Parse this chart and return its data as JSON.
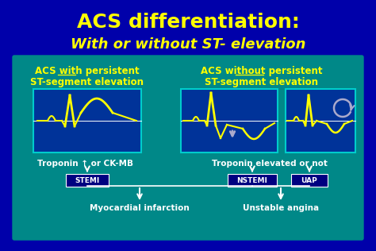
{
  "bg_color": "#0000aa",
  "panel_color": "#008888",
  "ecg_box_color": "#003399",
  "title_line1": "ACS differentiation:",
  "title_line2": "With or without ST- elevation",
  "title_color": "#ffff00",
  "subtitle_color": "#ffff00",
  "label_color": "#ffff00",
  "white_color": "#ffffff",
  "stemi_label": "STEMI",
  "nstemi_label": "NSTEMI",
  "uap_label": "UAP",
  "stemi_box_color": "#000080",
  "nstemi_box_color": "#000080",
  "uap_box_color": "#000080",
  "left_title1": "ACS with persistent",
  "left_title2": "ST-segment elevation",
  "right_title1": "ACS without persistent",
  "right_title2": "ST-segment elevation",
  "troponin_left": "Troponin",
  "troponin_left2": " or CK-MB",
  "troponin_right": "Troponin elevated or not",
  "myocardial": "Myocardial infarction",
  "unstable": "Unstable angina",
  "ecg_border_color": "#00cccc",
  "arrow_color": "#aaaacc"
}
